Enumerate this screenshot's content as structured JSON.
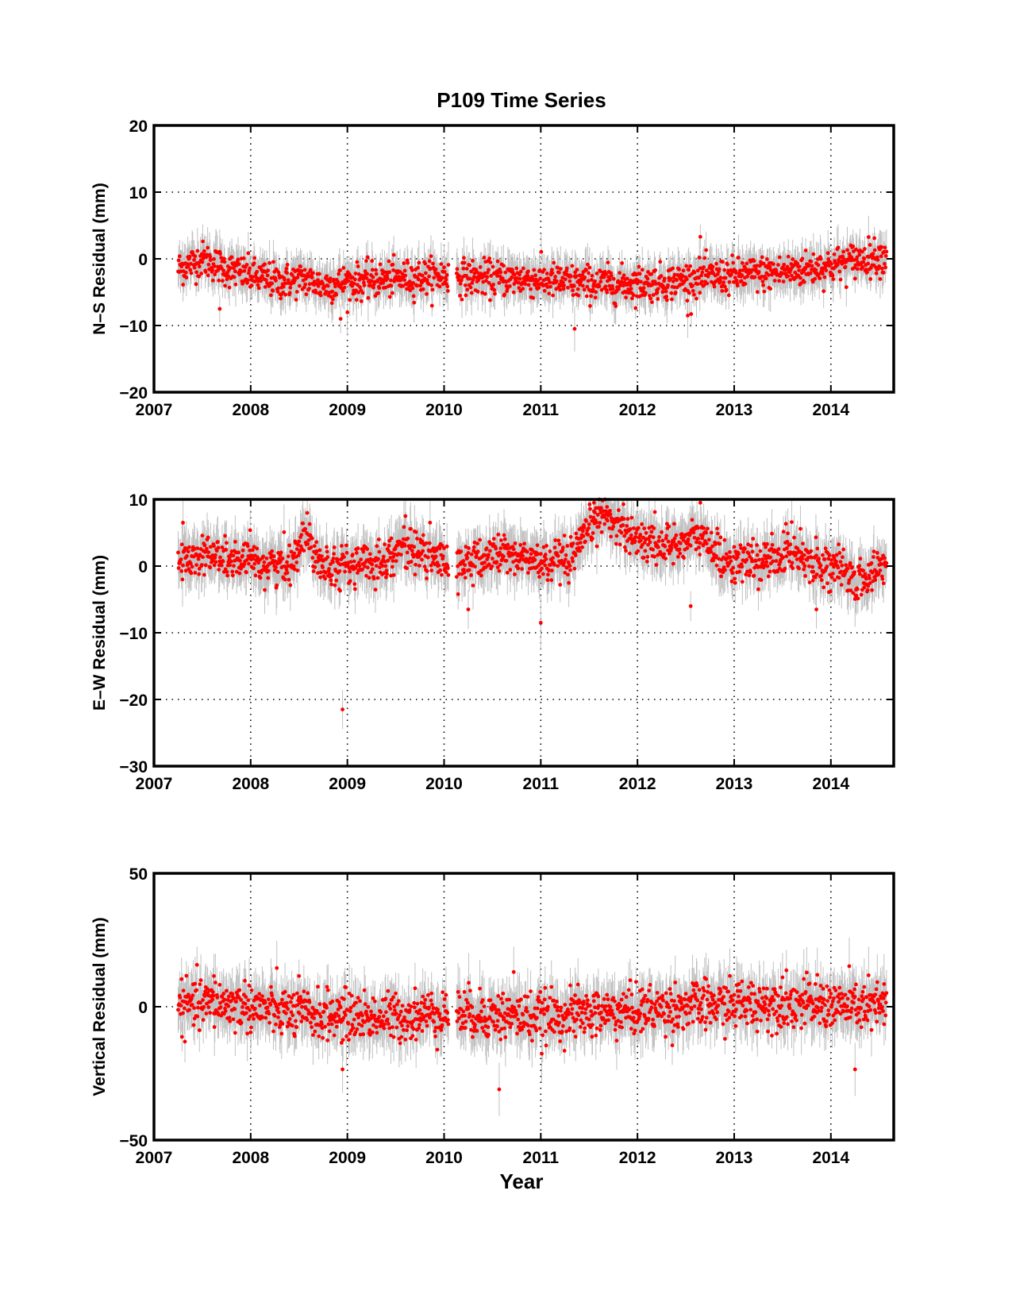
{
  "figure": {
    "title": "P109 Time Series",
    "xlabel": "Year"
  },
  "colors": {
    "point": "#ff0000",
    "errorbar": "#c0c0c0",
    "axis": "#000000",
    "grid": "#000000"
  },
  "chart_data": [
    {
      "type": "scatter",
      "ylabel": "N–S Residual (mm)",
      "xlim": [
        2007,
        2014.65
      ],
      "ylim": [
        -20,
        20
      ],
      "xticks": [
        "2007",
        "2008",
        "2009",
        "2010",
        "2011",
        "2012",
        "2013",
        "2014"
      ],
      "yticks": [
        "−20",
        "−10",
        "0",
        "10",
        "20"
      ],
      "ytick_values": [
        -20,
        -10,
        0,
        10,
        20
      ],
      "grid": true,
      "error_bars": true,
      "data_gap": [
        2010.05,
        2010.13
      ],
      "x_range": [
        2007.25,
        2014.58
      ],
      "trend": {
        "x": [
          2007.25,
          2007.5,
          2007.75,
          2008.0,
          2008.3,
          2008.55,
          2008.75,
          2009.0,
          2009.5,
          2010.0,
          2010.3,
          2010.8,
          2011.3,
          2011.8,
          2012.3,
          2012.7,
          2013.0,
          2013.5,
          2014.0,
          2014.3,
          2014.58
        ],
        "y": [
          -1.5,
          0.0,
          -1.5,
          -2.5,
          -3.5,
          -3.0,
          -4.0,
          -3.5,
          -3.0,
          -2.5,
          -2.8,
          -3.0,
          -3.5,
          -3.8,
          -3.5,
          -2.8,
          -2.5,
          -2.0,
          -1.0,
          0.0,
          0.5
        ]
      },
      "scatter_sd": 1.3,
      "errorbar_halfwidth": 2.5,
      "outliers": [
        {
          "x": 2007.68,
          "y": -7.5
        },
        {
          "x": 2008.93,
          "y": -9.0
        },
        {
          "x": 2011.35,
          "y": -10.5
        },
        {
          "x": 2012.65,
          "y": 3.3
        },
        {
          "x": 2012.52,
          "y": -8.5
        }
      ]
    },
    {
      "type": "scatter",
      "ylabel": "E–W Residual (mm)",
      "xlim": [
        2007,
        2014.65
      ],
      "ylim": [
        -30,
        10
      ],
      "xticks": [
        "2007",
        "2008",
        "2009",
        "2010",
        "2011",
        "2012",
        "2013",
        "2014"
      ],
      "yticks": [
        "−30",
        "−20",
        "−10",
        "0",
        "10"
      ],
      "ytick_values": [
        -30,
        -20,
        -10,
        0,
        10
      ],
      "grid": true,
      "error_bars": true,
      "data_gap": [
        2010.05,
        2010.13
      ],
      "x_range": [
        2007.25,
        2014.58
      ],
      "trend": {
        "x": [
          2007.25,
          2007.5,
          2007.75,
          2008.0,
          2008.4,
          2008.55,
          2008.75,
          2009.0,
          2009.3,
          2009.6,
          2010.0,
          2010.3,
          2010.6,
          2011.0,
          2011.3,
          2011.45,
          2011.6,
          2011.8,
          2012.0,
          2012.3,
          2012.65,
          2012.85,
          2013.0,
          2013.3,
          2013.6,
          2013.85,
          2014.0,
          2014.3,
          2014.58
        ],
        "y": [
          0.5,
          2.0,
          1.0,
          0.5,
          0.0,
          5.0,
          0.5,
          0.0,
          0.5,
          3.0,
          0.5,
          0.5,
          2.0,
          0.5,
          0.5,
          4.0,
          8.0,
          6.5,
          4.0,
          3.0,
          4.5,
          1.5,
          0.5,
          0.5,
          2.5,
          0.5,
          0.0,
          -2.5,
          0.5
        ]
      },
      "scatter_sd": 1.5,
      "errorbar_halfwidth": 3.0,
      "outliers": [
        {
          "x": 2008.95,
          "y": -21.5
        },
        {
          "x": 2011.0,
          "y": -8.5
        },
        {
          "x": 2010.25,
          "y": -6.5
        },
        {
          "x": 2012.55,
          "y": -6.0
        },
        {
          "x": 2011.55,
          "y": 9.5
        },
        {
          "x": 2012.65,
          "y": 9.5
        },
        {
          "x": 2007.3,
          "y": 6.5
        },
        {
          "x": 2013.85,
          "y": -6.5
        },
        {
          "x": 2009.6,
          "y": 7.5
        }
      ]
    },
    {
      "type": "scatter",
      "ylabel": "Vertical Residual (mm)",
      "xlim": [
        2007,
        2014.65
      ],
      "ylim": [
        -50,
        50
      ],
      "xticks": [
        "2007",
        "2008",
        "2009",
        "2010",
        "2011",
        "2012",
        "2013",
        "2014"
      ],
      "yticks": [
        "−50",
        "0",
        "50"
      ],
      "ytick_values": [
        -50,
        0,
        50
      ],
      "grid": true,
      "error_bars": true,
      "data_gap": [
        2010.05,
        2010.13
      ],
      "x_range": [
        2007.25,
        2014.58
      ],
      "trend": {
        "x": [
          2007.25,
          2007.6,
          2008.0,
          2008.5,
          2009.0,
          2009.5,
          2010.0,
          2010.4,
          2011.0,
          2011.5,
          2012.0,
          2012.5,
          2013.0,
          2013.5,
          2014.0,
          2014.58
        ],
        "y": [
          0.0,
          1.5,
          0.0,
          -3.0,
          -3.5,
          -4.0,
          -2.0,
          -3.0,
          -4.0,
          -2.5,
          -1.5,
          0.0,
          1.0,
          1.5,
          0.5,
          0.0
        ]
      },
      "scatter_sd": 4.5,
      "errorbar_halfwidth": 8.0,
      "outliers": [
        {
          "x": 2010.57,
          "y": -31.0
        },
        {
          "x": 2010.72,
          "y": 13.0
        },
        {
          "x": 2008.95,
          "y": -23.5
        },
        {
          "x": 2014.25,
          "y": -23.5
        },
        {
          "x": 2007.62,
          "y": 11.5
        },
        {
          "x": 2008.5,
          "y": 11.5
        },
        {
          "x": 2013.5,
          "y": 11.0
        },
        {
          "x": 2014.55,
          "y": 8.5
        }
      ]
    }
  ]
}
